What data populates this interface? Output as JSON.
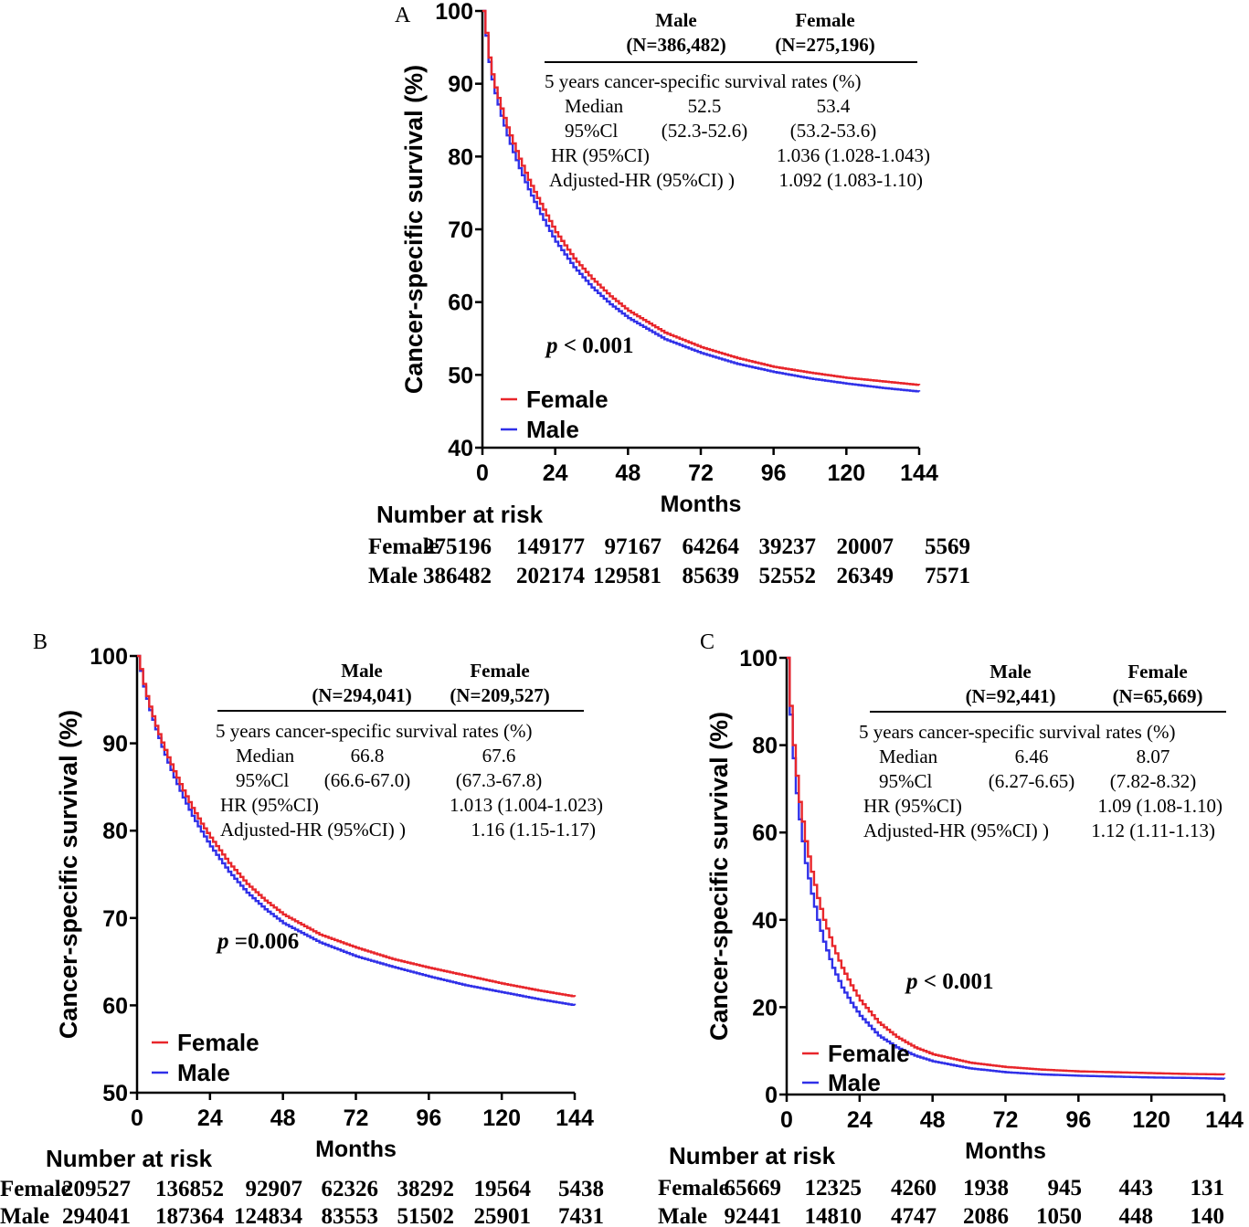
{
  "colors": {
    "female": "#e8262b",
    "male": "#3030e8",
    "axis": "#000000"
  },
  "chart_data": [
    {
      "panel_label": "A",
      "type": "line",
      "xlabel": "Months",
      "ylabel": "Cancer-specific survival (%)",
      "xlim": [
        0,
        144
      ],
      "ylim": [
        40,
        100
      ],
      "xticks": [
        "0",
        "24",
        "48",
        "72",
        "96",
        "120",
        "144"
      ],
      "yticks": [
        "40",
        "50",
        "60",
        "70",
        "80",
        "90",
        "100"
      ],
      "legend": [
        "Female",
        "Male"
      ],
      "pvalue": {
        "p": "p",
        "rest": " < 0.001"
      },
      "table": {
        "male_header": "Male",
        "male_n": "(N=386,482)",
        "female_header": "Female",
        "female_n": "(N=275,196)",
        "title": "5 years cancer-specific survival rates (%)",
        "median_label": "Median",
        "median_male": "52.5",
        "median_female": "53.4",
        "ci_label": "95%Cl",
        "ci_male": "(52.3-52.6)",
        "ci_female": "(53.2-53.6)",
        "hr_label": "HR (95%CI)",
        "hr_value": "1.036 (1.028-1.043)",
        "ahr_label": "Adjusted-HR (95%CI) )",
        "ahr_value": "1.092 (1.083-1.10)"
      },
      "risk_title": "Number at risk",
      "risk": {
        "female_label": "Female",
        "male_label": "Male",
        "female": [
          "275196",
          "149177",
          "97167",
          "64264",
          "39237",
          "20007",
          "5569"
        ],
        "male": [
          "386482",
          "202174",
          "129581",
          "85639",
          "52552",
          "26349",
          "7571"
        ]
      },
      "series": [
        {
          "name": "Female",
          "x": [
            0,
            1,
            2,
            3,
            4,
            6,
            8,
            10,
            12,
            15,
            18,
            21,
            24,
            30,
            36,
            42,
            48,
            60,
            72,
            84,
            96,
            108,
            120,
            132,
            144
          ],
          "y": [
            100,
            97,
            93.6,
            91.3,
            89.5,
            86.6,
            84,
            81.8,
            79.7,
            76.8,
            74.3,
            71.9,
            69.6,
            66,
            63.2,
            60.8,
            58.8,
            55.8,
            53.8,
            52.3,
            51.1,
            50.3,
            49.6,
            49.1,
            48.6
          ]
        },
        {
          "name": "Male",
          "x": [
            0,
            1,
            2,
            3,
            4,
            6,
            8,
            10,
            12,
            15,
            18,
            21,
            24,
            30,
            36,
            42,
            48,
            60,
            72,
            84,
            96,
            108,
            120,
            132,
            144
          ],
          "y": [
            100,
            96.6,
            93,
            90.6,
            88.7,
            85.6,
            82.9,
            80.6,
            78.4,
            75.5,
            72.9,
            70.5,
            68.3,
            64.8,
            62,
            59.7,
            57.8,
            54.9,
            53,
            51.5,
            50.4,
            49.5,
            48.8,
            48.2,
            47.7
          ]
        }
      ]
    },
    {
      "panel_label": "B",
      "type": "line",
      "xlabel": "Months",
      "ylabel": "Cancer-specific survival (%)",
      "xlim": [
        0,
        144
      ],
      "ylim": [
        50,
        100
      ],
      "xticks": [
        "0",
        "24",
        "48",
        "72",
        "96",
        "120",
        "144"
      ],
      "yticks": [
        "50",
        "60",
        "70",
        "80",
        "90",
        "100"
      ],
      "legend": [
        "Female",
        "Male"
      ],
      "pvalue": {
        "p": "p",
        "rest": " =0.006"
      },
      "table": {
        "male_header": "Male",
        "male_n": "(N=294,041)",
        "female_header": "Female",
        "female_n": "(N=209,527)",
        "title": "5 years cancer-specific survival rates (%)",
        "median_label": "Median",
        "median_male": "66.8",
        "median_female": "67.6",
        "ci_label": "95%Cl",
        "ci_male": "(66.6-67.0)",
        "ci_female": "(67.3-67.8)",
        "hr_label": "HR (95%CI)",
        "hr_value": "1.013 (1.004-1.023)",
        "ahr_label": "Adjusted-HR (95%CI) )",
        "ahr_value": "1.16 (1.15-1.17)"
      },
      "risk_title": "Number at risk",
      "risk": {
        "female_label": "Female",
        "male_label": "Male",
        "female": [
          "209527",
          "136852",
          "92907",
          "62326",
          "38292",
          "19564",
          "5438"
        ],
        "male": [
          "294041",
          "187364",
          "124834",
          "83553",
          "51502",
          "25901",
          "7431"
        ]
      },
      "series": [
        {
          "name": "Female",
          "x": [
            0,
            1,
            2,
            3,
            4,
            6,
            8,
            10,
            12,
            15,
            18,
            21,
            24,
            30,
            36,
            42,
            48,
            60,
            72,
            84,
            96,
            108,
            120,
            132,
            144
          ],
          "y": [
            100,
            98.5,
            96.8,
            95.4,
            94.2,
            92,
            90.1,
            88.4,
            86.8,
            84.6,
            82.6,
            80.8,
            79.2,
            76.3,
            73.9,
            72,
            70.4,
            68.1,
            66.6,
            65.3,
            64.3,
            63.4,
            62.5,
            61.7,
            61
          ]
        },
        {
          "name": "Male",
          "x": [
            0,
            1,
            2,
            3,
            4,
            6,
            8,
            10,
            12,
            15,
            18,
            21,
            24,
            30,
            36,
            42,
            48,
            60,
            72,
            84,
            96,
            108,
            120,
            132,
            144
          ],
          "y": [
            100,
            98.3,
            96.5,
            95.1,
            93.8,
            91.6,
            89.6,
            87.8,
            86.1,
            83.8,
            81.7,
            79.9,
            78.2,
            75.3,
            72.9,
            71,
            69.4,
            67.2,
            65.6,
            64.4,
            63.3,
            62.3,
            61.5,
            60.7,
            60
          ]
        }
      ]
    },
    {
      "panel_label": "C",
      "type": "line",
      "xlabel": "Months",
      "ylabel": "Cancer-specific survival (%)",
      "xlim": [
        0,
        144
      ],
      "ylim": [
        0,
        100
      ],
      "xticks": [
        "0",
        "24",
        "48",
        "72",
        "96",
        "120",
        "144"
      ],
      "yticks": [
        "0",
        "20",
        "40",
        "60",
        "80",
        "100"
      ],
      "legend": [
        "Female",
        "Male"
      ],
      "pvalue": {
        "p": "p",
        "rest": " < 0.001"
      },
      "table": {
        "male_header": "Male",
        "male_n": "(N=92,441)",
        "female_header": "Female",
        "female_n": "(N=65,669)",
        "title": "5 years cancer-specific survival rates (%)",
        "median_label": "Median",
        "median_male": "6.46",
        "median_female": "8.07",
        "ci_label": "95%Cl",
        "ci_male": "(6.27-6.65)",
        "ci_female": "(7.82-8.32)",
        "hr_label": "HR (95%CI)",
        "hr_value": "1.09 (1.08-1.10)",
        "ahr_label": "Adjusted-HR (95%CI) )",
        "ahr_value": "1.12 (1.11-1.13)"
      },
      "risk_title": "Number at risk",
      "risk": {
        "female_label": "Female",
        "male_label": "Male",
        "female": [
          "65669",
          "12325",
          "4260",
          "1938",
          "945",
          "443",
          "131"
        ],
        "male": [
          "92441",
          "14810",
          "4747",
          "2086",
          "1050",
          "448",
          "140"
        ]
      },
      "series": [
        {
          "name": "Female",
          "x": [
            0,
            1,
            2,
            3,
            4,
            6,
            8,
            10,
            12,
            15,
            18,
            21,
            24,
            30,
            36,
            42,
            48,
            60,
            72,
            84,
            96,
            108,
            120,
            132,
            144
          ],
          "y": [
            100,
            89,
            80,
            73,
            67,
            58,
            51,
            45,
            40,
            34,
            29,
            25,
            21.5,
            16.5,
            13.2,
            10.8,
            9.2,
            7.3,
            6.3,
            5.7,
            5.3,
            5.1,
            4.9,
            4.7,
            4.6
          ]
        },
        {
          "name": "Male",
          "x": [
            0,
            1,
            2,
            3,
            4,
            6,
            8,
            10,
            12,
            15,
            18,
            21,
            24,
            30,
            36,
            42,
            48,
            60,
            72,
            84,
            96,
            108,
            120,
            132,
            144
          ],
          "y": [
            100,
            87,
            77,
            69,
            63,
            53,
            46,
            40,
            35,
            29,
            24.5,
            21,
            18,
            13.5,
            10.8,
            8.9,
            7.6,
            6,
            5.1,
            4.6,
            4.3,
            4.1,
            3.9,
            3.8,
            3.6
          ]
        }
      ]
    }
  ]
}
